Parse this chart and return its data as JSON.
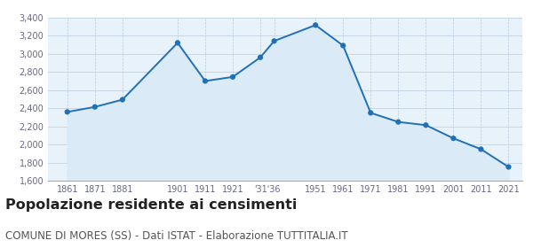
{
  "years": [
    1861,
    1871,
    1881,
    1901,
    1911,
    1921,
    1931,
    1936,
    1951,
    1961,
    1971,
    1981,
    1991,
    2001,
    2011,
    2021
  ],
  "population": [
    2360,
    2415,
    2495,
    3120,
    2700,
    2745,
    2960,
    3140,
    3315,
    3090,
    2350,
    2250,
    2215,
    2070,
    1950,
    1755
  ],
  "ylim": [
    1600,
    3400
  ],
  "yticks": [
    1600,
    1800,
    2000,
    2200,
    2400,
    2600,
    2800,
    3000,
    3200,
    3400
  ],
  "xlim_left": 1854,
  "xlim_right": 2026,
  "line_color": "#2070b8",
  "fill_color": "#daeaf7",
  "marker_color": "#2070b8",
  "bg_color": "#ffffff",
  "plot_bg_color": "#e8f2fb",
  "grid_color": "#bbccdd",
  "axis_color": "#aaaaaa",
  "tick_label_color": "#666688",
  "title": "Popolazione residente ai censimenti",
  "subtitle": "COMUNE DI MORES (SS) - Dati ISTAT - Elaborazione TUTTITALIA.IT",
  "title_fontsize": 11.5,
  "subtitle_fontsize": 8.5
}
